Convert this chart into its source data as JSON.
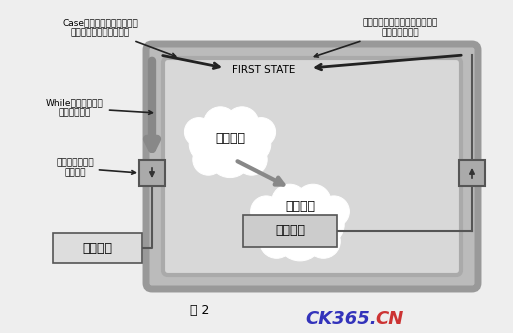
{
  "bg_color": "#eeeeee",
  "title": "图 2",
  "annotations": {
    "top_left_line1": "Case结构对每一状态都配备",
    "top_left_line2": "一个分支以进行状态判断",
    "top_right_line1": "切换代码根据执行步骤中的结果",
    "top_right_line2": "来决定下一状态",
    "left_mid1_line1": "While循环结构保持",
    "left_mid1_line2": "状态机的运行",
    "left_mid2_line1": "移位寄存器用于",
    "left_mid2_line2": "传递状态",
    "cloud1_text": "执行步骤",
    "cloud2_text": "切换代码",
    "box_text": "下一状态",
    "init_box": "初始状态",
    "first_state": "FIRST STATE"
  },
  "colors": {
    "outer_box_fill": "#bbbbbb",
    "inner_box_fill": "#d8d8d8",
    "cloud_fill": "#ffffff",
    "box_fill": "#e0e0e0",
    "text_color": "#000000",
    "watermark_blue": "#3333bb",
    "watermark_red": "#cc3333",
    "gray_arrow": "#999999",
    "dark_arrow": "#333333"
  }
}
